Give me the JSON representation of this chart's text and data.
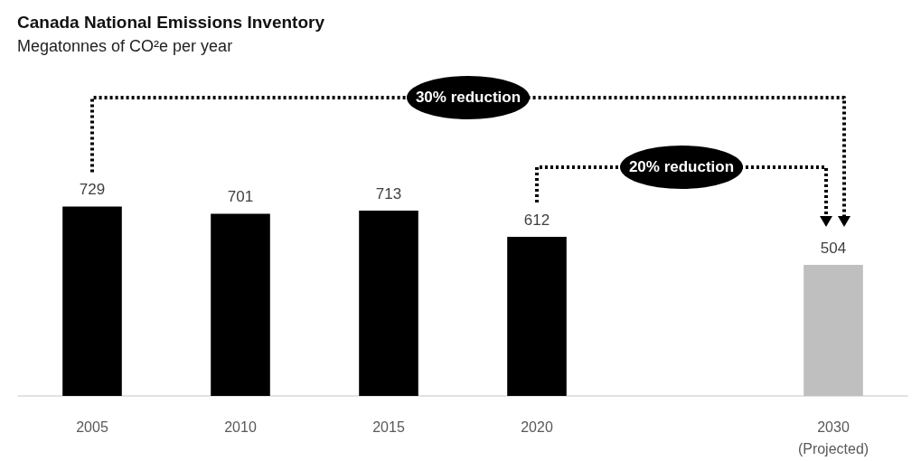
{
  "chart_data": {
    "type": "bar",
    "title": "Canada National Emissions Inventory",
    "subtitle": "Megatonnes of CO²e per year",
    "categories": [
      "2005",
      "2010",
      "2015",
      "2020",
      null,
      "2030\n(Projected)"
    ],
    "values": [
      729,
      701,
      713,
      612,
      null,
      504
    ],
    "colors": [
      "#000000",
      "#000000",
      "#000000",
      "#000000",
      null,
      "#bfbfbf"
    ],
    "data_labels": true,
    "grid": false,
    "annotations": [
      "30% reduction",
      "20% reduction"
    ]
  }
}
